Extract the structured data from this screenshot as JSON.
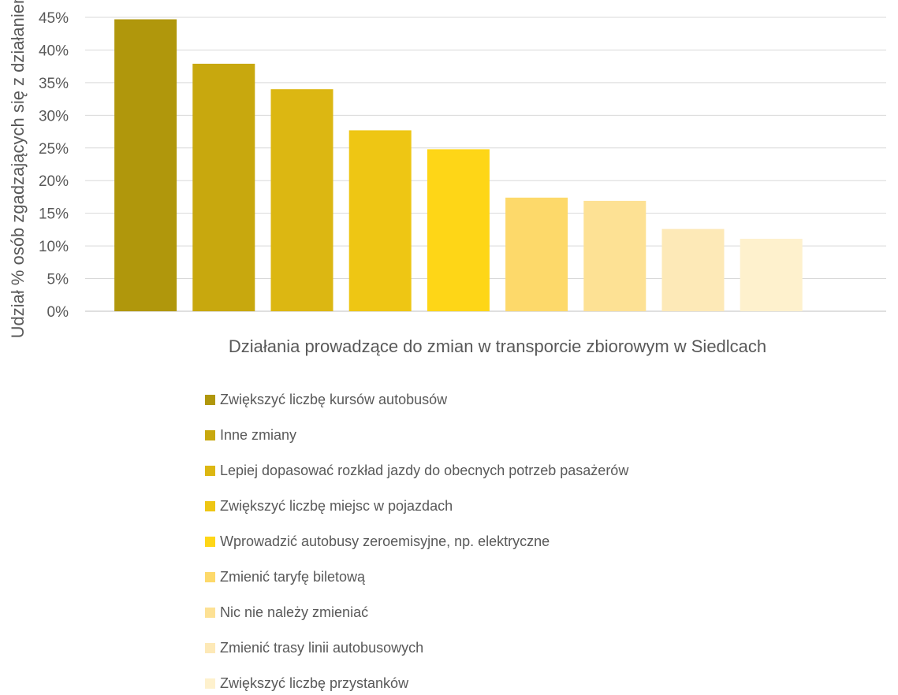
{
  "chart_data": {
    "type": "bar",
    "title": "",
    "xlabel": "Działania prowadzące do zmian w transporcie zbiorowym w Siedlcach",
    "ylabel": "Udział % osób zgadzających się z działaniem",
    "ylim": [
      0,
      45
    ],
    "yticks": [
      "0%",
      "5%",
      "10%",
      "15%",
      "20%",
      "25%",
      "30%",
      "35%",
      "40%",
      "45%"
    ],
    "grid": true,
    "legend_position": "bottom",
    "series": [
      {
        "name": "Zwiększyć liczbę kursów autobusów",
        "value": 44.7,
        "color": "#b0970c"
      },
      {
        "name": "Inne zmiany",
        "value": 37.9,
        "color": "#c8a80e"
      },
      {
        "name": "Lepiej dopasować rozkład jazdy do obecnych potrzeb pasażerów",
        "value": 34.0,
        "color": "#dcb712"
      },
      {
        "name": "Zwiększyć liczbę miejsc w pojazdach",
        "value": 27.7,
        "color": "#eec614"
      },
      {
        "name": "Wprowadzić autobusy zeroemisyjne, np. elektryczne",
        "value": 24.8,
        "color": "#fed617"
      },
      {
        "name": "Zmienić taryfę biletową",
        "value": 17.4,
        "color": "#fdd96a"
      },
      {
        "name": "Nic nie należy zmieniać",
        "value": 16.9,
        "color": "#fde194"
      },
      {
        "name": "Zmienić trasy linii autobusowych",
        "value": 12.6,
        "color": "#fde9b7"
      },
      {
        "name": "Zwiększyć liczbę przystanków",
        "value": 11.1,
        "color": "#fef1cd"
      }
    ]
  }
}
